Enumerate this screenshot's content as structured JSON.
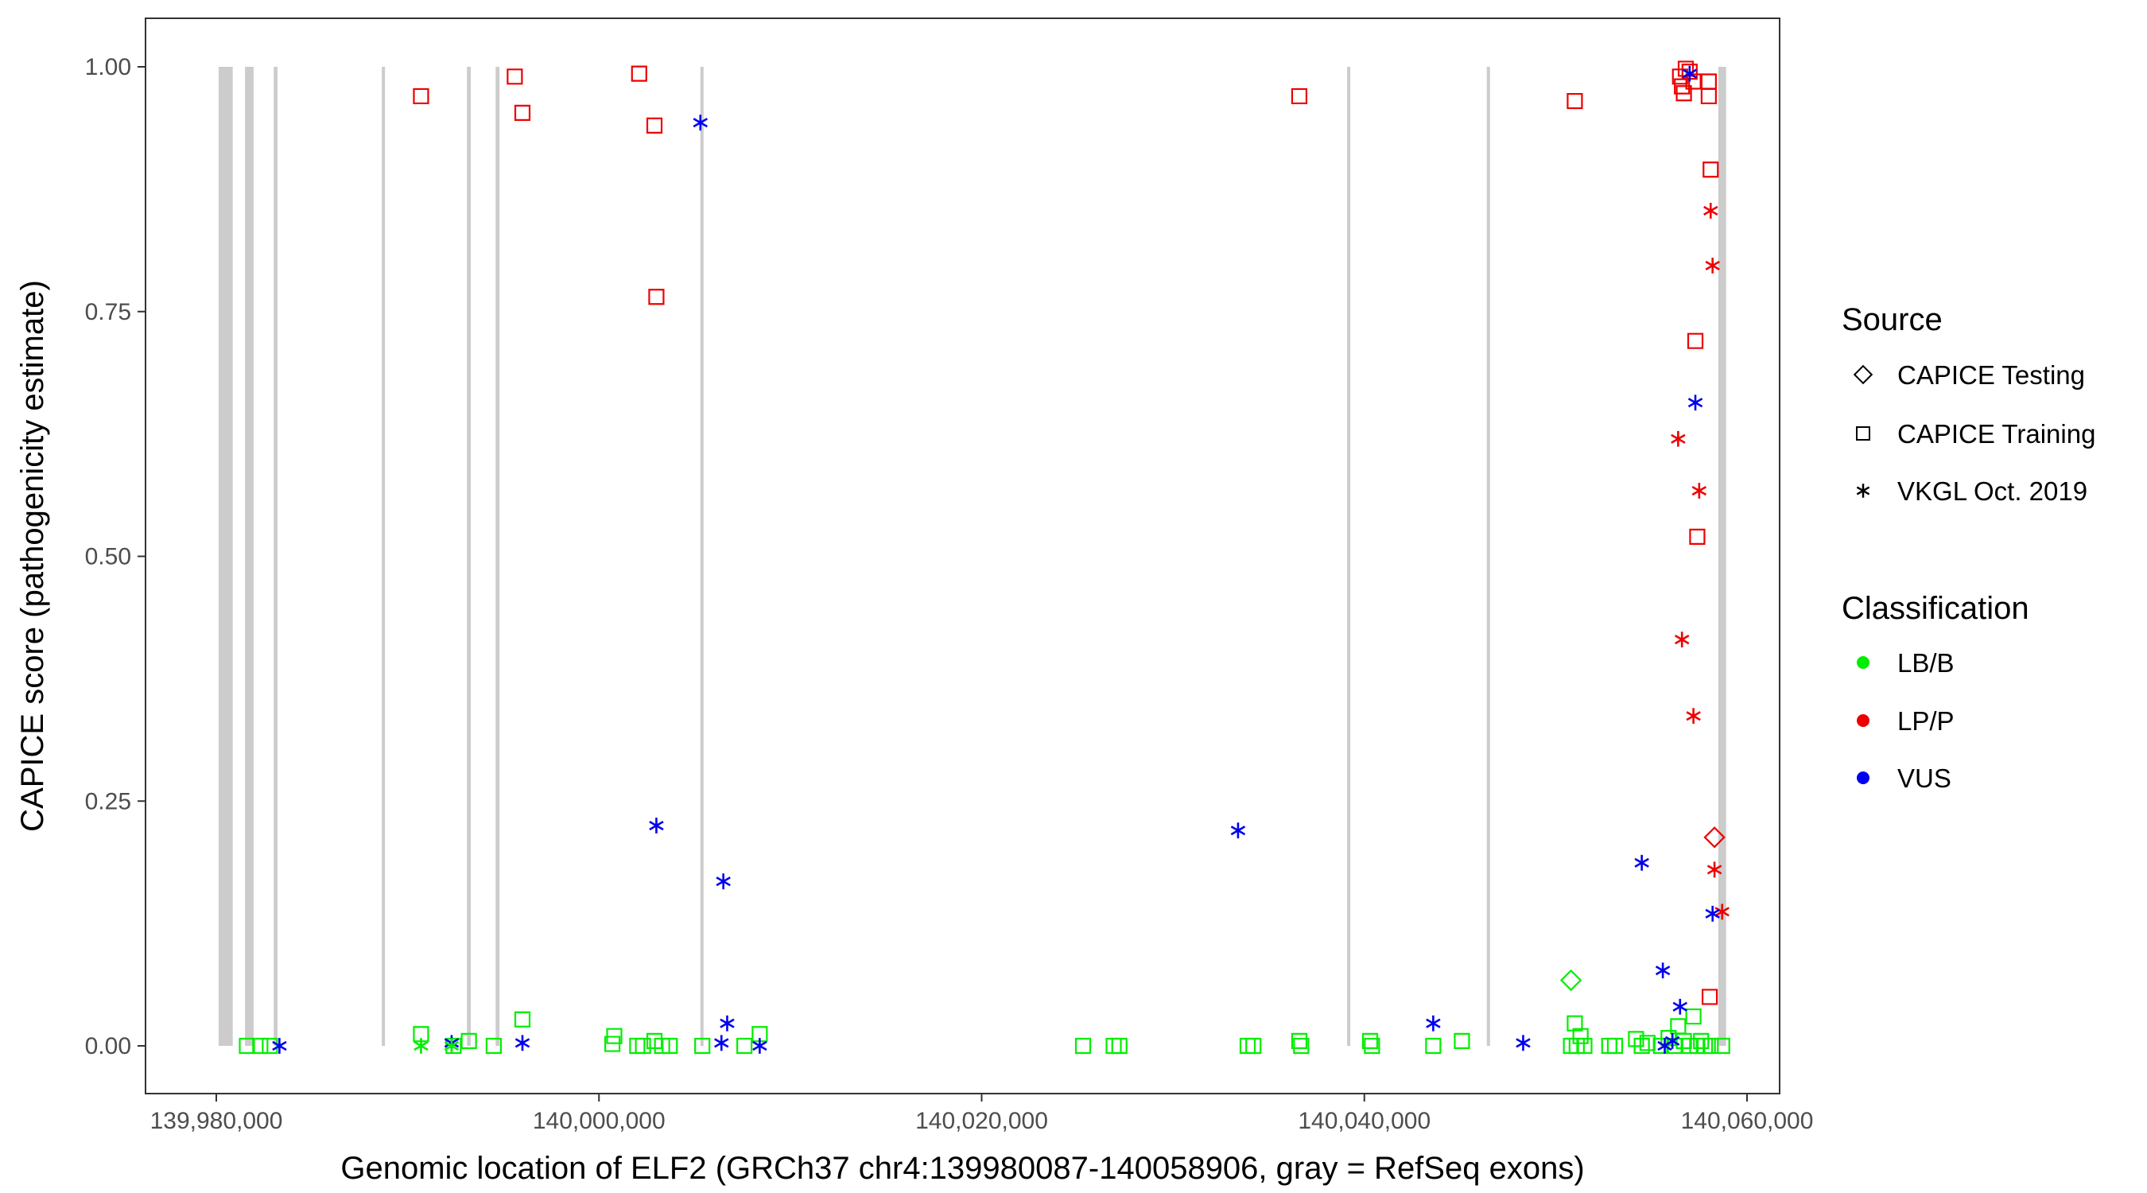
{
  "chart_data": {
    "type": "scatter",
    "xlabel": "Genomic location of ELF2 (GRCh37 chr4:139980087-140058906, gray = RefSeq exons)",
    "ylabel": "CAPICE score (pathogenicity estimate)",
    "xlim": [
      139980087,
      140058906
    ],
    "ylim": [
      0,
      1
    ],
    "x_ticks": [
      139980000,
      140000000,
      140020000,
      140040000,
      140060000
    ],
    "x_tick_labels": [
      "139,980,000",
      "140,000,000",
      "140,020,000",
      "140,040,000",
      "140,060,000"
    ],
    "y_ticks": [
      0,
      0.25,
      0.5,
      0.75,
      1
    ],
    "y_tick_labels": [
      "0.00",
      "0.25",
      "0.50",
      "0.75",
      "1.00"
    ],
    "grid": false,
    "exons": [
      [
        139980120,
        139980860
      ],
      [
        139981500,
        139981950
      ],
      [
        139983000,
        139983200
      ],
      [
        139988650,
        139988800
      ],
      [
        139993100,
        139993300
      ],
      [
        139994600,
        139994800
      ],
      [
        140005300,
        140005400
      ],
      [
        140039100,
        140039250
      ],
      [
        140046400,
        140046550
      ],
      [
        140058500,
        140058906
      ]
    ],
    "legend": {
      "placement": "right",
      "source_title": "Source",
      "source_entries": [
        {
          "label": "CAPICE Testing",
          "shape": "diamond"
        },
        {
          "label": "CAPICE Training",
          "shape": "square"
        },
        {
          "label": "VKGL Oct. 2019",
          "shape": "asterisk"
        }
      ],
      "class_title": "Classification",
      "class_entries": [
        {
          "label": "LB/B",
          "color": "#00ee00"
        },
        {
          "label": "LP/P",
          "color": "#ee0000"
        },
        {
          "label": "VUS",
          "color": "#0000ee"
        }
      ]
    },
    "colors": {
      "LB/B": "#00ee00",
      "LP/P": "#ee0000",
      "VUS": "#0000ee"
    },
    "series": [
      {
        "source": "CAPICE Training",
        "classification": "LP/P",
        "points": [
          [
            139990700,
            0.97
          ],
          [
            139995600,
            0.99
          ],
          [
            139996000,
            0.953
          ],
          [
            140002100,
            0.993
          ],
          [
            140002900,
            0.94
          ],
          [
            140003000,
            0.765
          ],
          [
            140036600,
            0.97
          ],
          [
            140051000,
            0.965
          ],
          [
            140056500,
            0.99
          ],
          [
            140056600,
            0.98
          ],
          [
            140056700,
            0.973
          ],
          [
            140056800,
            0.998
          ],
          [
            140057000,
            0.995
          ],
          [
            140057200,
            0.985
          ],
          [
            140057300,
            0.72
          ],
          [
            140057400,
            0.52
          ],
          [
            140058000,
            0.985
          ],
          [
            140058000,
            0.97
          ],
          [
            140058100,
            0.895
          ],
          [
            140058050,
            0.05
          ]
        ]
      },
      {
        "source": "CAPICE Training",
        "classification": "LB/B",
        "points": [
          [
            139981600,
            0.0
          ],
          [
            139982300,
            0.0
          ],
          [
            139982800,
            0.0
          ],
          [
            139990700,
            0.012
          ],
          [
            139992400,
            0.0
          ],
          [
            139993200,
            0.005
          ],
          [
            139994500,
            0.0
          ],
          [
            139996000,
            0.027
          ],
          [
            140000700,
            0.002
          ],
          [
            140000800,
            0.01
          ],
          [
            140002000,
            0.0
          ],
          [
            140002300,
            0.0
          ],
          [
            140002900,
            0.005
          ],
          [
            140003300,
            0.0
          ],
          [
            140003700,
            0.0
          ],
          [
            140005400,
            0.0
          ],
          [
            140007600,
            0.0
          ],
          [
            140008400,
            0.012
          ],
          [
            140025300,
            0.0
          ],
          [
            140026900,
            0.0
          ],
          [
            140027200,
            0.0
          ],
          [
            140033900,
            0.0
          ],
          [
            140034200,
            0.0
          ],
          [
            140036600,
            0.005
          ],
          [
            140036700,
            0.0
          ],
          [
            140040300,
            0.005
          ],
          [
            140040400,
            0.0
          ],
          [
            140043600,
            0.0
          ],
          [
            140045100,
            0.005
          ],
          [
            140050800,
            0.0
          ],
          [
            140051000,
            0.023
          ],
          [
            140051100,
            0.0
          ],
          [
            140051300,
            0.01
          ],
          [
            140051500,
            0.0
          ],
          [
            140052800,
            0.0
          ],
          [
            140053100,
            0.0
          ],
          [
            140054200,
            0.007
          ],
          [
            140054500,
            0.0
          ],
          [
            140054800,
            0.003
          ],
          [
            140055500,
            0.0
          ],
          [
            140055900,
            0.008
          ],
          [
            140056200,
            0.0
          ],
          [
            140056400,
            0.02
          ],
          [
            140056700,
            0.005
          ],
          [
            140057000,
            0.0
          ],
          [
            140057200,
            0.03
          ],
          [
            140057400,
            0.0
          ],
          [
            140057600,
            0.005
          ],
          [
            140057800,
            0.0
          ],
          [
            140058100,
            0.0
          ],
          [
            140058700,
            0.0
          ]
        ]
      },
      {
        "source": "CAPICE Testing",
        "classification": "LB/B",
        "points": [
          [
            140050800,
            0.067
          ]
        ]
      },
      {
        "source": "CAPICE Testing",
        "classification": "LP/P",
        "points": [
          [
            140058300,
            0.213
          ]
        ]
      },
      {
        "source": "VKGL Oct. 2019",
        "classification": "LP/P",
        "points": [
          [
            140056400,
            0.62
          ],
          [
            140057500,
            0.567
          ],
          [
            140058100,
            0.853
          ],
          [
            140058200,
            0.797
          ],
          [
            140056600,
            0.415
          ],
          [
            140057200,
            0.337
          ],
          [
            140058300,
            0.18
          ],
          [
            140058700,
            0.137
          ]
        ]
      },
      {
        "source": "VKGL Oct. 2019",
        "classification": "VUS",
        "points": [
          [
            139983300,
            0.0
          ],
          [
            139992300,
            0.003
          ],
          [
            139996000,
            0.003
          ],
          [
            140003000,
            0.225
          ],
          [
            140005300,
            0.943
          ],
          [
            140006500,
            0.168
          ],
          [
            140006700,
            0.023
          ],
          [
            140006400,
            0.003
          ],
          [
            140008400,
            0.0
          ],
          [
            140033400,
            0.22
          ],
          [
            140043600,
            0.023
          ],
          [
            140048300,
            0.003
          ],
          [
            140054500,
            0.187
          ],
          [
            140055600,
            0.077
          ],
          [
            140056500,
            0.04
          ],
          [
            140056100,
            0.005
          ],
          [
            140055700,
            0.0
          ],
          [
            140057000,
            0.993
          ],
          [
            140057300,
            0.657
          ],
          [
            140058200,
            0.135
          ]
        ]
      },
      {
        "source": "VKGL Oct. 2019",
        "classification": "LB/B",
        "points": [
          [
            139990700,
            0.0
          ],
          [
            139992300,
            0.0
          ]
        ]
      }
    ]
  }
}
